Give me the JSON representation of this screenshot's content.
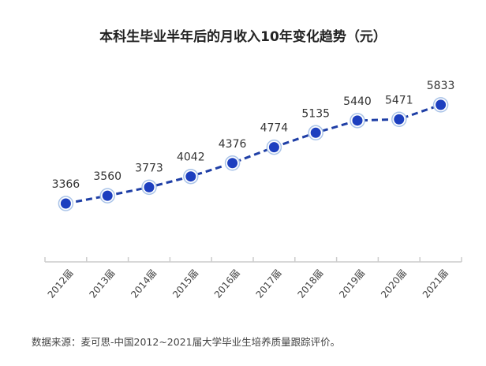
{
  "chart_data": {
    "type": "line",
    "title": "本科生毕业半年后的月收入10年变化趋势（元）",
    "categories": [
      "2012届",
      "2013届",
      "2014届",
      "2015届",
      "2016届",
      "2017届",
      "2018届",
      "2019届",
      "2020届",
      "2021届"
    ],
    "series": [
      {
        "name": "月收入",
        "values": [
          3366,
          3560,
          3773,
          4042,
          4376,
          4774,
          5135,
          5440,
          5471,
          5833
        ]
      }
    ],
    "xlabel": "",
    "ylabel": "",
    "ylim": [
      1906,
      7271
    ],
    "grid": false,
    "colors": {
      "line": "#1f3fa6",
      "point": "#1d3fbf",
      "ring": "#a9c3e8",
      "axis": "#cccccc"
    }
  },
  "source": "数据来源：麦可思-中国2012~2021届大学毕业生培养质量跟踪评价。"
}
